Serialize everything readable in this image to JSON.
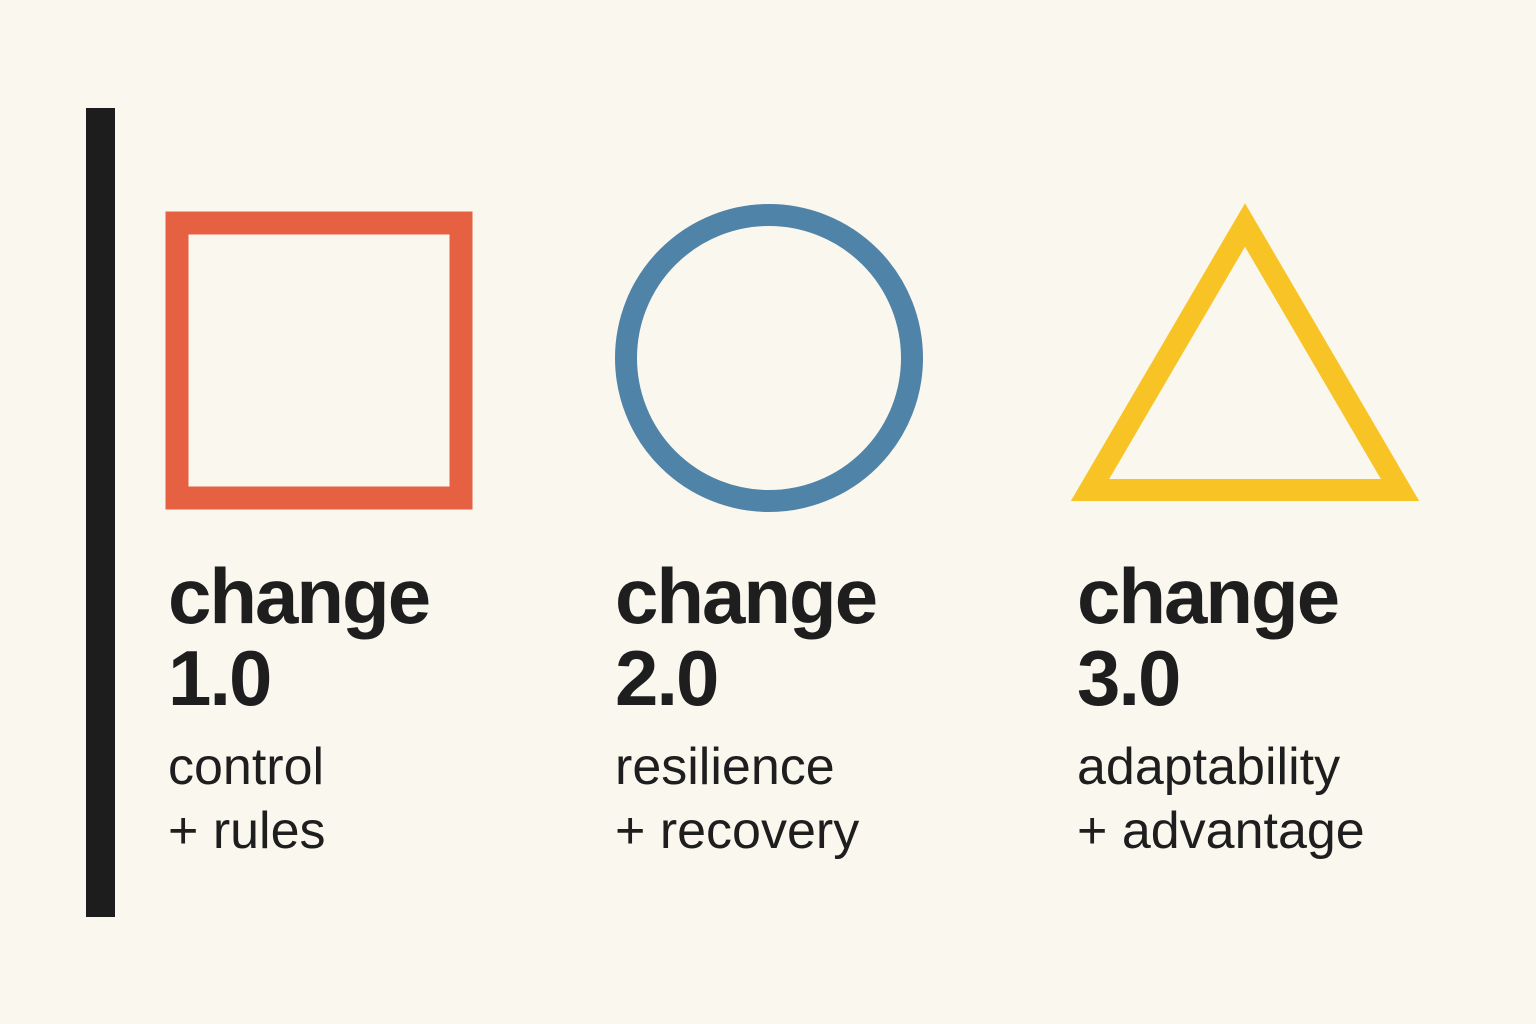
{
  "colors": {
    "bar": "#1d1d1d",
    "square": "#e66042",
    "circle": "#4f83a8",
    "triangle": "#f8c425",
    "background": "#faf7ee"
  },
  "items": [
    {
      "shape": "square",
      "title": "change",
      "version": "1.0",
      "line1": "control",
      "line2": "+ rules"
    },
    {
      "shape": "circle",
      "title": "change",
      "version": "2.0",
      "line1": "resilience",
      "line2": "+ recovery"
    },
    {
      "shape": "triangle",
      "title": "change",
      "version": "3.0",
      "line1": "adaptability",
      "line2": "+ advantage"
    }
  ]
}
